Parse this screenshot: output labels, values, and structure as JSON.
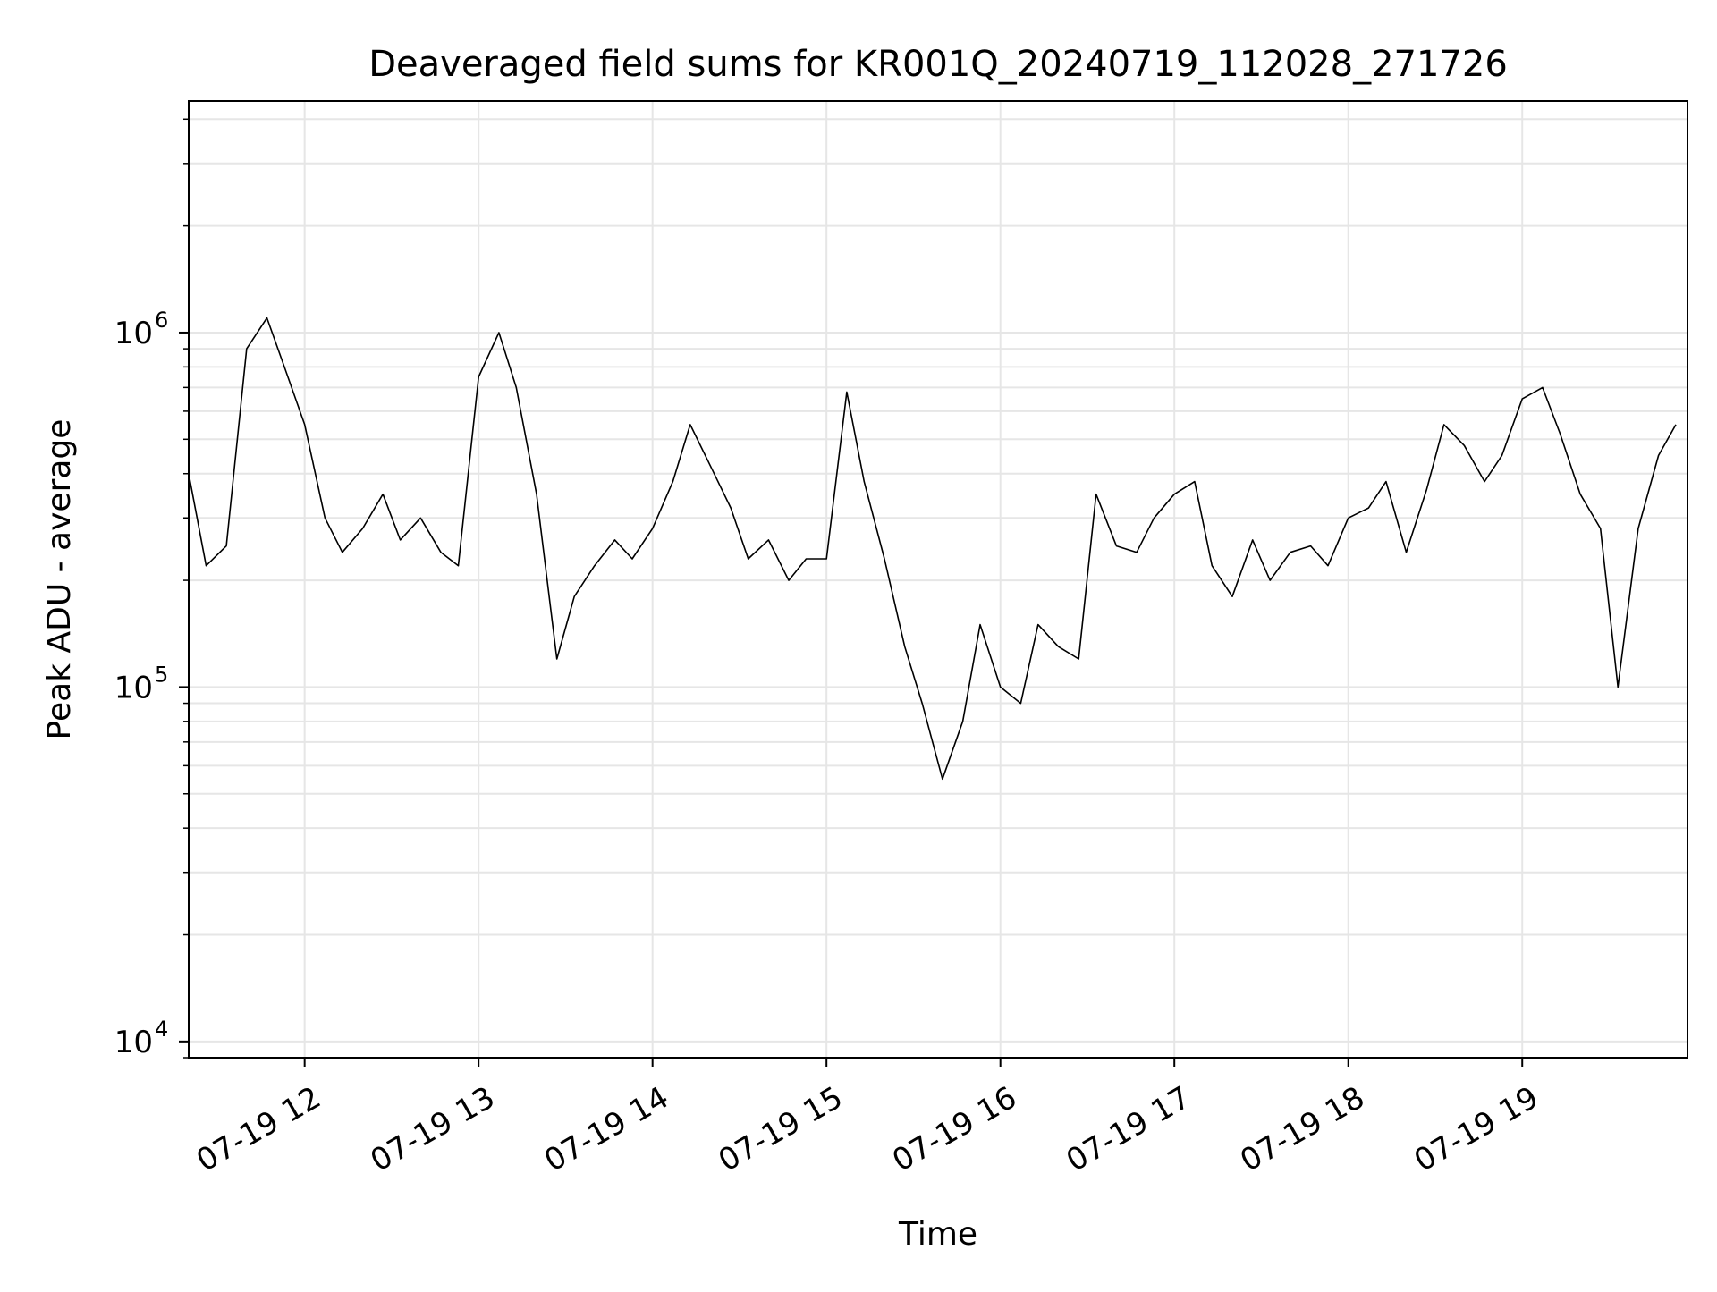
{
  "chart_data": {
    "type": "line",
    "title": "Deaveraged field sums for KR001Q_20240719_112028_271726",
    "xlabel": "Time",
    "ylabel": "Peak ADU - average",
    "yscale": "log",
    "ylim": [
      9000,
      4500000
    ],
    "xlim": [
      "2024-07-19 11:20",
      "2024-07-19 19:57"
    ],
    "xticks": [
      {
        "t": "2024-07-19 12:00",
        "label": "07-19 12"
      },
      {
        "t": "2024-07-19 13:00",
        "label": "07-19 13"
      },
      {
        "t": "2024-07-19 14:00",
        "label": "07-19 14"
      },
      {
        "t": "2024-07-19 15:00",
        "label": "07-19 15"
      },
      {
        "t": "2024-07-19 16:00",
        "label": "07-19 16"
      },
      {
        "t": "2024-07-19 17:00",
        "label": "07-19 17"
      },
      {
        "t": "2024-07-19 18:00",
        "label": "07-19 18"
      },
      {
        "t": "2024-07-19 19:00",
        "label": "07-19 19"
      }
    ],
    "yticks": [
      {
        "value": 10000,
        "label_base": "10",
        "label_exp": "4"
      },
      {
        "value": 100000,
        "label_base": "10",
        "label_exp": "5"
      },
      {
        "value": 1000000,
        "label_base": "10",
        "label_exp": "6"
      }
    ],
    "grid": true,
    "line_color": "#000000",
    "series": [
      {
        "x": [
          "2024-07-19 11:20",
          "2024-07-19 11:26",
          "2024-07-19 11:33",
          "2024-07-19 11:40",
          "2024-07-19 11:47",
          "2024-07-19 11:53",
          "2024-07-19 12:00",
          "2024-07-19 12:07",
          "2024-07-19 12:13",
          "2024-07-19 12:20",
          "2024-07-19 12:27",
          "2024-07-19 12:33",
          "2024-07-19 12:40",
          "2024-07-19 12:47",
          "2024-07-19 12:53",
          "2024-07-19 13:00",
          "2024-07-19 13:07",
          "2024-07-19 13:13",
          "2024-07-19 13:20",
          "2024-07-19 13:27",
          "2024-07-19 13:33",
          "2024-07-19 13:40",
          "2024-07-19 13:47",
          "2024-07-19 13:53",
          "2024-07-19 14:00",
          "2024-07-19 14:07",
          "2024-07-19 14:13",
          "2024-07-19 14:20",
          "2024-07-19 14:27",
          "2024-07-19 14:33",
          "2024-07-19 14:40",
          "2024-07-19 14:47",
          "2024-07-19 14:53",
          "2024-07-19 15:00",
          "2024-07-19 15:07",
          "2024-07-19 15:13",
          "2024-07-19 15:20",
          "2024-07-19 15:27",
          "2024-07-19 15:33",
          "2024-07-19 15:40",
          "2024-07-19 15:47",
          "2024-07-19 15:53",
          "2024-07-19 16:00",
          "2024-07-19 16:07",
          "2024-07-19 16:13",
          "2024-07-19 16:20",
          "2024-07-19 16:27",
          "2024-07-19 16:33",
          "2024-07-19 16:40",
          "2024-07-19 16:47",
          "2024-07-19 16:53",
          "2024-07-19 17:00",
          "2024-07-19 17:07",
          "2024-07-19 17:13",
          "2024-07-19 17:20",
          "2024-07-19 17:27",
          "2024-07-19 17:33",
          "2024-07-19 17:40",
          "2024-07-19 17:47",
          "2024-07-19 17:53",
          "2024-07-19 18:00",
          "2024-07-19 18:07",
          "2024-07-19 18:13",
          "2024-07-19 18:20",
          "2024-07-19 18:27",
          "2024-07-19 18:33",
          "2024-07-19 18:40",
          "2024-07-19 18:47",
          "2024-07-19 18:53",
          "2024-07-19 19:00",
          "2024-07-19 19:07",
          "2024-07-19 19:13",
          "2024-07-19 19:20",
          "2024-07-19 19:27",
          "2024-07-19 19:33",
          "2024-07-19 19:40",
          "2024-07-19 19:47",
          "2024-07-19 19:53"
        ],
        "y": [
          400000,
          220000,
          250000,
          900000,
          1100000,
          800000,
          550000,
          300000,
          240000,
          280000,
          350000,
          260000,
          300000,
          240000,
          220000,
          750000,
          1000000,
          700000,
          350000,
          120000,
          180000,
          220000,
          260000,
          230000,
          280000,
          380000,
          550000,
          420000,
          320000,
          230000,
          260000,
          200000,
          230000,
          230000,
          680000,
          380000,
          230000,
          130000,
          90000,
          55000,
          80000,
          150000,
          100000,
          90000,
          150000,
          130000,
          120000,
          350000,
          250000,
          240000,
          300000,
          350000,
          380000,
          220000,
          180000,
          260000,
          200000,
          240000,
          250000,
          220000,
          300000,
          320000,
          380000,
          240000,
          360000,
          550000,
          480000,
          380000,
          450000,
          650000,
          700000,
          520000,
          350000,
          280000,
          100000,
          280000,
          450000,
          550000
        ]
      }
    ]
  }
}
